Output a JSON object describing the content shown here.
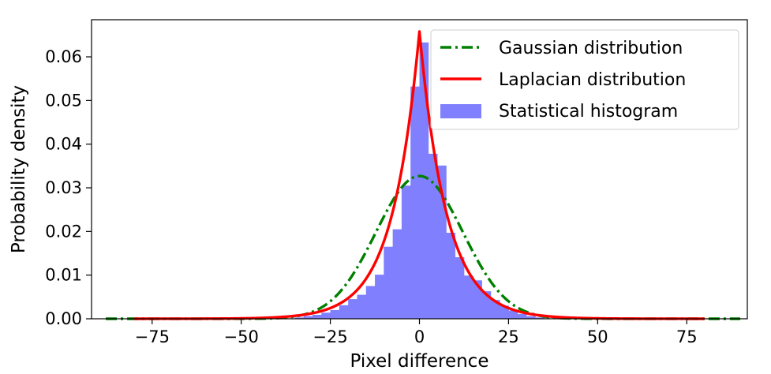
{
  "chart_data": {
    "type": "line",
    "xlabel": "Pixel difference",
    "ylabel": "Probability density",
    "xlim": [
      -92,
      92
    ],
    "ylim": [
      0,
      0.0685
    ],
    "grid": false,
    "legend_position": "top-right",
    "x_ticks": [
      -75,
      -50,
      -25,
      0,
      25,
      50,
      75
    ],
    "x_tick_labels": [
      "−75",
      "−50",
      "−25",
      "0",
      "25",
      "50",
      "75"
    ],
    "y_ticks": [
      0,
      0.01,
      0.02,
      0.03,
      0.04,
      0.05,
      0.06
    ],
    "y_tick_labels": [
      "0.00",
      "0.01",
      "0.02",
      "0.03",
      "0.04",
      "0.05",
      "0.06"
    ],
    "series": [
      {
        "name": "Gaussian distribution",
        "kind": "line",
        "style": "dashdot",
        "color": "#008000",
        "distribution": {
          "family": "normal",
          "mean": 0,
          "std": 12.2,
          "x_range": [
            -88,
            90
          ],
          "samples": 361
        }
      },
      {
        "name": "Laplacian distribution",
        "kind": "line",
        "style": "solid",
        "color": "#ff0000",
        "distribution": {
          "family": "laplace",
          "location": 0,
          "scale": 7.6,
          "x_range": [
            -80,
            80
          ],
          "samples": 641
        }
      },
      {
        "name": "Statistical histogram",
        "kind": "histogram",
        "color": "#8080ff",
        "bin_width": 2.5,
        "bins": [
          {
            "x0": -35,
            "density": 0.0003
          },
          {
            "x0": -32.5,
            "density": 0.0006
          },
          {
            "x0": -30,
            "density": 0.0009
          },
          {
            "x0": -27.5,
            "density": 0.0014
          },
          {
            "x0": -25,
            "density": 0.002
          },
          {
            "x0": -22.5,
            "density": 0.0031
          },
          {
            "x0": -20,
            "density": 0.0045
          },
          {
            "x0": -17.5,
            "density": 0.0055
          },
          {
            "x0": -15,
            "density": 0.0075
          },
          {
            "x0": -12.5,
            "density": 0.0101
          },
          {
            "x0": -10,
            "density": 0.0165
          },
          {
            "x0": -7.5,
            "density": 0.0205
          },
          {
            "x0": -5,
            "density": 0.0305
          },
          {
            "x0": -2.5,
            "density": 0.0532
          },
          {
            "x0": 0,
            "density": 0.0633
          },
          {
            "x0": 2.5,
            "density": 0.0378
          },
          {
            "x0": 5,
            "density": 0.0351
          },
          {
            "x0": 7.5,
            "density": 0.0197
          },
          {
            "x0": 10,
            "density": 0.0141
          },
          {
            "x0": 12.5,
            "density": 0.0099
          },
          {
            "x0": 15,
            "density": 0.0088
          },
          {
            "x0": 17.5,
            "density": 0.0063
          },
          {
            "x0": 20,
            "density": 0.0043
          },
          {
            "x0": 22.5,
            "density": 0.003
          },
          {
            "x0": 25,
            "density": 0.0019
          },
          {
            "x0": 27.5,
            "density": 0.0011
          },
          {
            "x0": 30,
            "density": 0.0006
          },
          {
            "x0": 32.5,
            "density": 0.0003
          }
        ]
      }
    ]
  }
}
